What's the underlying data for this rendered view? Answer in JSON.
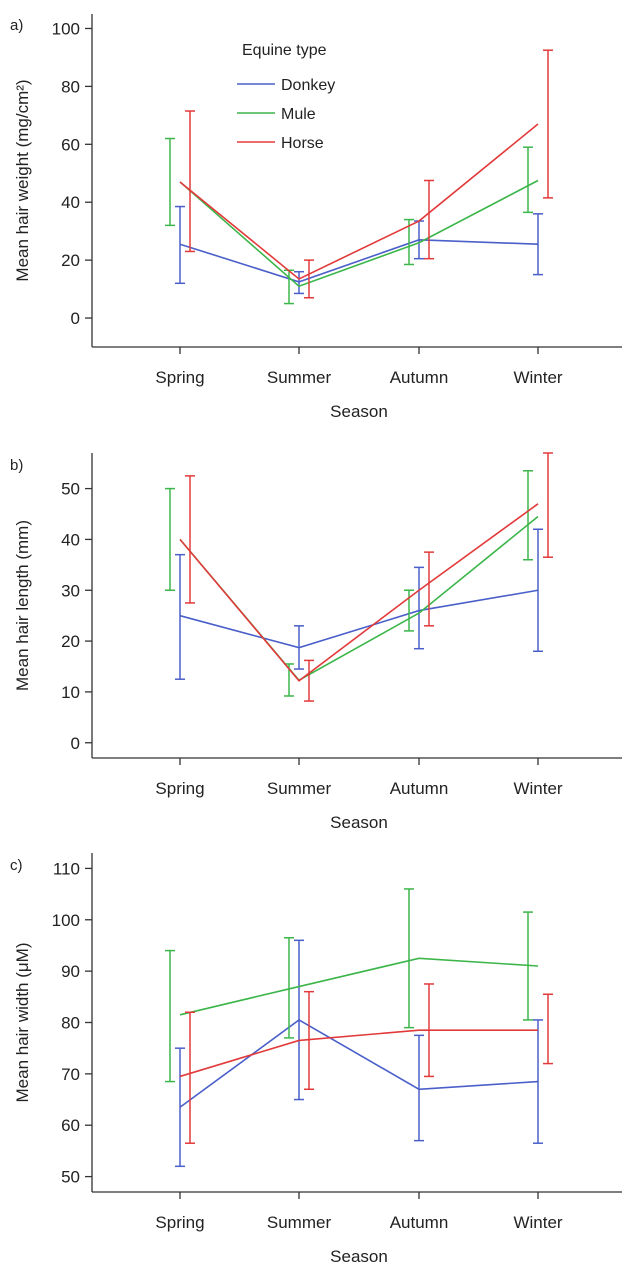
{
  "chart_data": [
    {
      "type": "line",
      "panel_label": "a)",
      "categories": [
        "Spring",
        "Summer",
        "Autumn",
        "Winter"
      ],
      "xlabel": "Season",
      "ylabel": "Mean hair weight (mg/cm²)",
      "ylim": [
        -10,
        105
      ],
      "yticks": [
        0,
        20,
        40,
        60,
        80,
        100
      ],
      "legend": {
        "title": "Equine type",
        "position": "top-left"
      },
      "series": [
        {
          "name": "Donkey",
          "color": "#4a5fc9",
          "values": [
            25.5,
            12.5,
            27,
            25.5
          ],
          "err_low": [
            12,
            8.5,
            20.5,
            15
          ],
          "err_high": [
            38.5,
            16,
            33.5,
            36
          ]
        },
        {
          "name": "Mule",
          "color": "#3cb64a",
          "values": [
            47,
            11,
            26,
            47.5
          ],
          "err_low": [
            32,
            5,
            18.5,
            36.5
          ],
          "err_high": [
            62,
            16.5,
            34,
            59
          ]
        },
        {
          "name": "Horse",
          "color": "#e23a3a",
          "values": [
            47,
            13.5,
            33.5,
            67
          ],
          "err_low": [
            23,
            7,
            20.5,
            41.5
          ],
          "err_high": [
            71.5,
            20,
            47.5,
            92.5
          ]
        }
      ]
    },
    {
      "type": "line",
      "panel_label": "b)",
      "categories": [
        "Spring",
        "Summer",
        "Autumn",
        "Winter"
      ],
      "xlabel": "Season",
      "ylabel": "Mean hair length (mm)",
      "ylim": [
        -3,
        57
      ],
      "yticks": [
        0,
        10,
        20,
        30,
        40,
        50
      ],
      "series": [
        {
          "name": "Donkey",
          "color": "#4a5fc9",
          "values": [
            25,
            18.7,
            26,
            30
          ],
          "err_low": [
            12.5,
            14.5,
            18.5,
            18
          ],
          "err_high": [
            37,
            23,
            34.5,
            42
          ]
        },
        {
          "name": "Mule",
          "color": "#3cb64a",
          "values": [
            40,
            12.3,
            25.5,
            44.5
          ],
          "err_low": [
            30,
            9.2,
            22,
            36
          ],
          "err_high": [
            50,
            15.5,
            30,
            53.5
          ]
        },
        {
          "name": "Horse",
          "color": "#e23a3a",
          "values": [
            40,
            12.2,
            30,
            47
          ],
          "err_low": [
            27.5,
            8.2,
            23,
            36.5
          ],
          "err_high": [
            52.5,
            16.2,
            37.5,
            57
          ]
        }
      ]
    },
    {
      "type": "line",
      "panel_label": "c)",
      "categories": [
        "Spring",
        "Summer",
        "Autumn",
        "Winter"
      ],
      "xlabel": "Season",
      "ylabel": "Mean hair width (μM)",
      "ylim": [
        47,
        113
      ],
      "yticks": [
        50,
        60,
        70,
        80,
        90,
        100,
        110
      ],
      "series": [
        {
          "name": "Donkey",
          "color": "#4a5fc9",
          "values": [
            63.5,
            80.5,
            67,
            68.5
          ],
          "err_low": [
            52,
            65,
            57,
            56.5
          ],
          "err_high": [
            75,
            96,
            77.5,
            80.5
          ]
        },
        {
          "name": "Mule",
          "color": "#3cb64a",
          "values": [
            81.5,
            87,
            92.5,
            91
          ],
          "err_low": [
            68.5,
            77,
            79,
            80.5
          ],
          "err_high": [
            94,
            96.5,
            106,
            101.5
          ]
        },
        {
          "name": "Horse",
          "color": "#e23a3a",
          "values": [
            69.5,
            76.5,
            78.5,
            78.5
          ],
          "err_low": [
            56.5,
            67,
            69.5,
            72
          ],
          "err_high": [
            82,
            86,
            87.5,
            85.5
          ]
        }
      ]
    }
  ]
}
